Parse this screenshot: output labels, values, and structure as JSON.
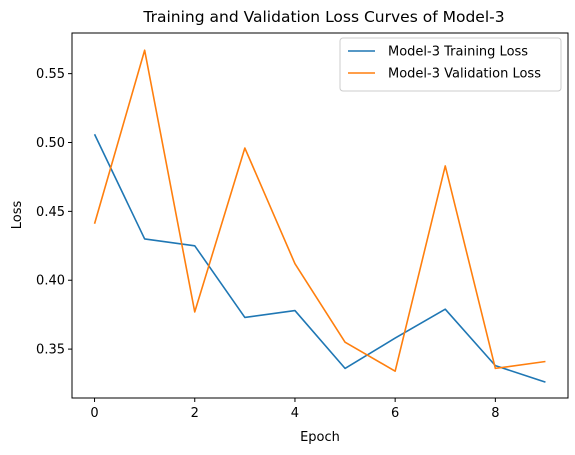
{
  "chart_data": {
    "type": "line",
    "title": "Training and Validation Loss Curves of Model-3",
    "xlabel": "Epoch",
    "ylabel": "Loss",
    "x": [
      0,
      1,
      2,
      3,
      4,
      5,
      6,
      7,
      8,
      9
    ],
    "xlim": [
      -0.45,
      9.45
    ],
    "ylim": [
      0.3145,
      0.5795
    ],
    "xticks": [
      0,
      2,
      4,
      6,
      8
    ],
    "yticks": [
      0.35,
      0.4,
      0.45,
      0.5,
      0.55
    ],
    "xtick_labels": [
      "0",
      "2",
      "4",
      "6",
      "8"
    ],
    "ytick_labels": [
      "0.35",
      "0.40",
      "0.45",
      "0.50",
      "0.55"
    ],
    "grid": false,
    "legend_position": "top-right",
    "series": [
      {
        "name": "Model-3 Training Loss",
        "color": "#1f77b4",
        "values": [
          0.506,
          0.43,
          0.425,
          0.373,
          0.378,
          0.336,
          0.358,
          0.379,
          0.338,
          0.326
        ]
      },
      {
        "name": "Model-3 Validation Loss",
        "color": "#ff7f0e",
        "values": [
          0.441,
          0.567,
          0.377,
          0.496,
          0.412,
          0.355,
          0.334,
          0.483,
          0.336,
          0.341
        ]
      }
    ]
  }
}
